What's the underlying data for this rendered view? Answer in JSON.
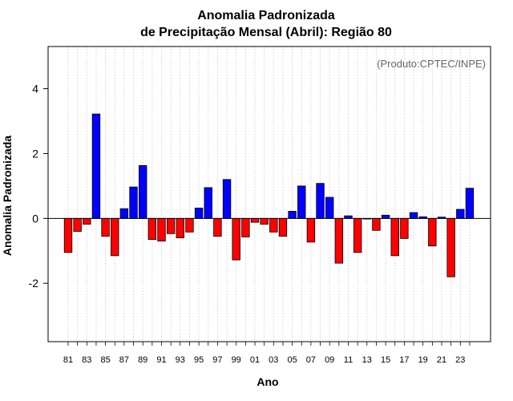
{
  "chart_data": {
    "type": "bar",
    "title": "Anomalia Padronizada",
    "subtitle": "de Precipitação Mensal (Abril): Região 80",
    "xlabel": "Ano",
    "ylabel": "Anomalia Padronizada",
    "credit": "(Produto:CPTEC/INPE)",
    "ylim": [
      -3.8,
      5.3
    ],
    "yticks": [
      -2,
      0,
      2,
      4
    ],
    "ytick_labels": [
      "-2",
      "0",
      "2",
      "4"
    ],
    "grid": "vertical-dotted",
    "positive_color": "#0000ff",
    "negative_color": "#ff0000",
    "categories": [
      "81",
      "82",
      "83",
      "84",
      "85",
      "86",
      "87",
      "88",
      "89",
      "90",
      "91",
      "92",
      "93",
      "94",
      "95",
      "96",
      "97",
      "98",
      "99",
      "00",
      "01",
      "02",
      "03",
      "04",
      "05",
      "06",
      "07",
      "08",
      "09",
      "10",
      "11",
      "12",
      "13",
      "14",
      "15",
      "16",
      "17",
      "18",
      "19",
      "20",
      "21",
      "22",
      "23",
      "24"
    ],
    "values": [
      -1.05,
      -0.4,
      -0.18,
      3.22,
      -0.55,
      -1.15,
      0.3,
      0.97,
      1.63,
      -0.65,
      -0.7,
      -0.47,
      -0.6,
      -0.42,
      0.32,
      0.95,
      -0.55,
      1.2,
      -1.28,
      -0.57,
      -0.12,
      -0.18,
      -0.42,
      -0.55,
      0.22,
      1.0,
      -0.73,
      1.08,
      0.65,
      -1.38,
      0.08,
      -1.05,
      -0.02,
      -0.37,
      0.1,
      -1.15,
      -0.62,
      0.18,
      0.05,
      -0.85,
      0.04,
      -1.8,
      0.28,
      0.93
    ],
    "xtick_labels": [
      "81",
      "83",
      "85",
      "87",
      "89",
      "91",
      "93",
      "95",
      "97",
      "99",
      "01",
      "03",
      "05",
      "07",
      "09",
      "11",
      "13",
      "15",
      "17",
      "19",
      "21",
      "23"
    ]
  }
}
